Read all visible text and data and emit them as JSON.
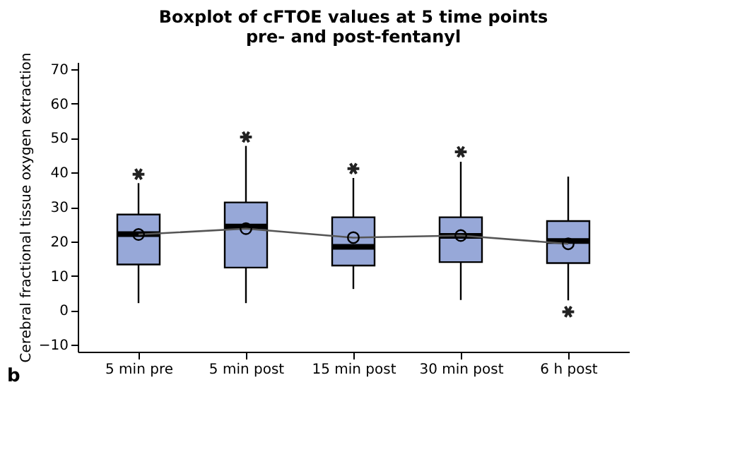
{
  "chart_data": {
    "type": "box",
    "title": "Boxplot of cFTOE values at 5 time points pre- and post-fentanyl",
    "ylabel": "Cerebral fractional tissue oxygen extraction",
    "categories": [
      "5 min pre",
      "5 min post",
      "15 min post",
      "30 min post",
      "6 h post"
    ],
    "ylim": [
      -12,
      72
    ],
    "yticks": [
      -10,
      0,
      10,
      20,
      30,
      40,
      50,
      60,
      70
    ],
    "grid": false,
    "color": "#97a8d8",
    "boxes": [
      {
        "low": 2.1,
        "q1": 13.3,
        "median": 22.1,
        "q3": 27.8,
        "high": 36.9,
        "outliers": [
          39.5
        ]
      },
      {
        "low": 2.1,
        "q1": 12.4,
        "median": 24.3,
        "q3": 31.3,
        "high": 47.7,
        "outliers": [
          50.3
        ]
      },
      {
        "low": 6.2,
        "q1": 13,
        "median": 18.4,
        "q3": 27,
        "high": 38.4,
        "outliers": [
          41.1
        ]
      },
      {
        "low": 3,
        "q1": 14,
        "median": 21.6,
        "q3": 27,
        "high": 43.1,
        "outliers": [
          46
        ]
      },
      {
        "low": 2.9,
        "q1": 13.7,
        "median": 20.1,
        "q3": 25.9,
        "high": 38.8,
        "outliers": [
          -0.4
        ]
      }
    ],
    "series": [
      {
        "type": "line",
        "color": "#555555",
        "marker": "circle",
        "values": [
          22,
          23.7,
          21.1,
          21.7,
          19.3
        ]
      }
    ],
    "annotations": [
      "b"
    ]
  }
}
